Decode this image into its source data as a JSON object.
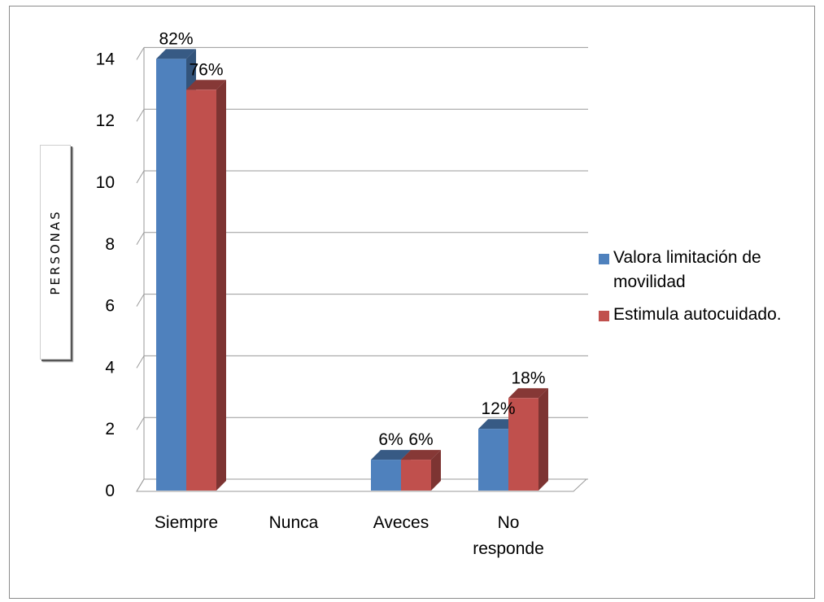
{
  "chart_data": {
    "type": "bar",
    "categories": [
      "Siempre",
      "Nunca",
      "Aveces",
      "No\nresponde"
    ],
    "ylabel": "PERSONAS",
    "ylim": [
      0,
      14
    ],
    "yticks": [
      0,
      2,
      4,
      6,
      8,
      10,
      12,
      14
    ],
    "grid": true,
    "legend_position": "right",
    "series": [
      {
        "name": "Valora limitación de movilidad",
        "color": "#4f81bd",
        "values": [
          14,
          0,
          1,
          2
        ],
        "labels": [
          "82%",
          "",
          "6%",
          "12%"
        ]
      },
      {
        "name": "Estimula autocuidado.",
        "color": "#c0504d",
        "values": [
          13,
          0,
          1,
          3
        ],
        "labels": [
          "76%",
          "",
          "6%",
          "18%"
        ]
      }
    ]
  }
}
